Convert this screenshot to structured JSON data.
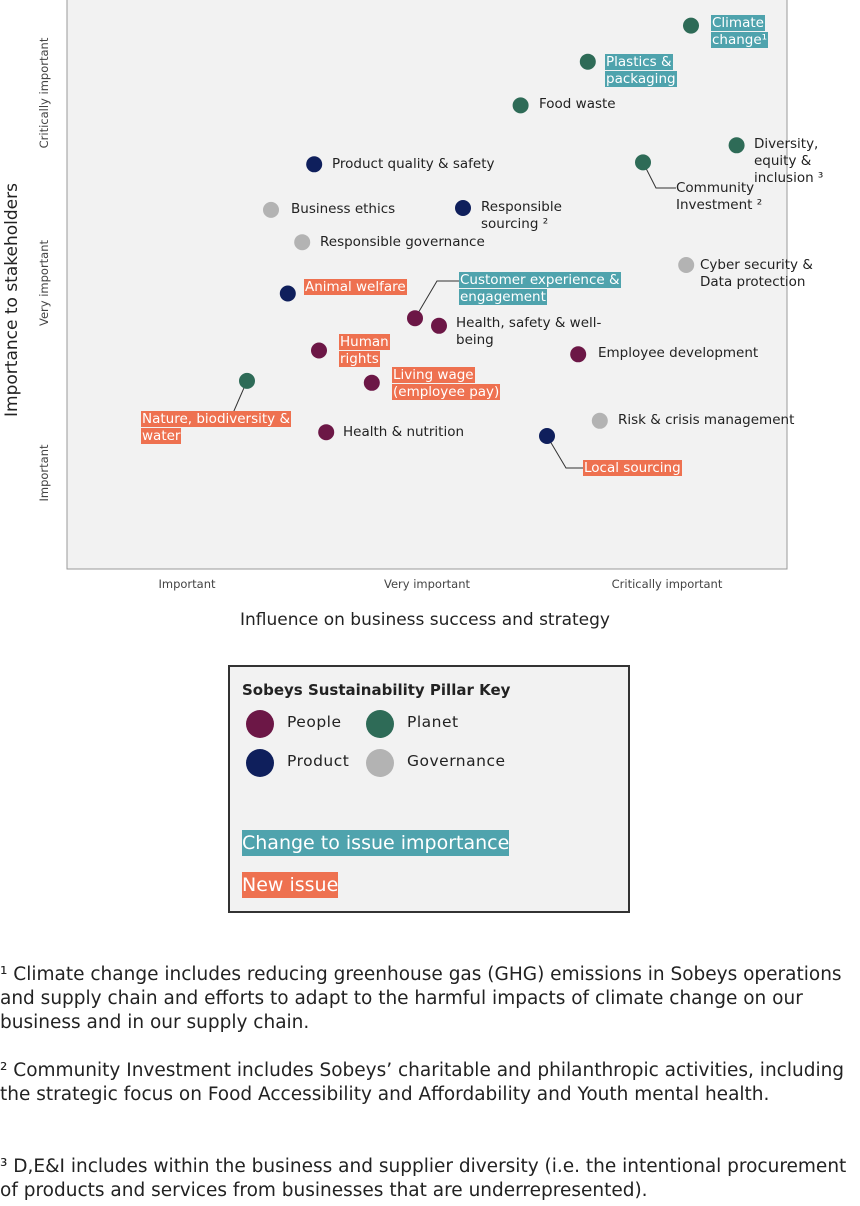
{
  "chart_data": {
    "type": "scatter",
    "xlabel": "Influence on business success and strategy",
    "ylabel": "Importance to stakeholders",
    "xlim": [
      0.5,
      3.5
    ],
    "ylim": [
      0.5,
      3.5
    ],
    "xticks": [
      {
        "value": 1,
        "label": "Important"
      },
      {
        "value": 2,
        "label": "Very important"
      },
      {
        "value": 3,
        "label": "Critically important"
      }
    ],
    "yticks": [
      {
        "value": 1,
        "label": "Important"
      },
      {
        "value": 2,
        "label": "Very important"
      },
      {
        "value": 3,
        "label": "Critically important"
      }
    ],
    "legend_title": "Sobeys Sustainability Pillar Key",
    "highlight_key": [
      {
        "name": "Change to issue importance",
        "color": "#4fa3ad"
      },
      {
        "name": "New issue",
        "color": "#ee7150"
      }
    ],
    "series": [
      {
        "name": "People",
        "color": "#6c1746",
        "labels": [
          "Customer experience & engagement",
          "Health, safety & well-being",
          "Human rights",
          "Employee development",
          "Living wage (employee pay)",
          "Health & nutrition"
        ],
        "x": [
          1.95,
          2.05,
          1.55,
          2.63,
          1.77,
          1.58
        ],
        "values": [
          1.82,
          1.78,
          1.65,
          1.63,
          1.48,
          1.22
        ],
        "highlights": [
          "Change to issue importance",
          null,
          "New issue",
          null,
          "New issue",
          null
        ]
      },
      {
        "name": "Planet",
        "color": "#2e6b57",
        "labels": [
          "Climate change¹",
          "Plastics & packaging",
          "Food waste",
          "Diversity, equity & inclusion ³",
          "Community Investment ²",
          "Nature, biodiversity & water"
        ],
        "x": [
          3.1,
          2.67,
          2.39,
          3.29,
          2.9,
          1.25
        ],
        "values": [
          3.36,
          3.17,
          2.94,
          2.73,
          2.64,
          1.49
        ],
        "highlights": [
          "Change to issue importance",
          "Change to issue importance",
          null,
          null,
          null,
          "New issue"
        ]
      },
      {
        "name": "Product",
        "color": "#0f1f5c",
        "labels": [
          "Product quality & safety",
          "Responsible sourcing ²",
          "Animal welfare",
          "Local sourcing"
        ],
        "x": [
          1.53,
          2.15,
          1.42,
          2.5
        ],
        "values": [
          2.63,
          2.4,
          1.95,
          1.2
        ],
        "highlights": [
          null,
          null,
          "New issue",
          "New issue"
        ]
      },
      {
        "name": "Governance",
        "color": "#b3b3b3",
        "labels": [
          "Business ethics",
          "Responsible governance",
          "Cyber security & Data protection",
          "Risk & crisis management"
        ],
        "x": [
          1.35,
          1.48,
          3.08,
          2.72
        ],
        "values": [
          2.39,
          2.22,
          2.1,
          1.28
        ],
        "highlights": [
          null,
          null,
          null,
          null
        ]
      }
    ]
  },
  "footnotes": [
    "¹ Climate change includes reducing greenhouse gas (GHG) emissions in Sobeys operations and supply chain and efforts to adapt to the harmful impacts of climate change on our business and in our supply chain.",
    "² Community Investment includes Sobeys’ charitable and philanthropic activities, including the strategic focus on Food Accessibility and Affordability and Youth mental health.",
    "³ D,E&I includes within the business and supplier diversity (i.e. the intentional procurement of products and services from businesses that are underrepresented)."
  ]
}
